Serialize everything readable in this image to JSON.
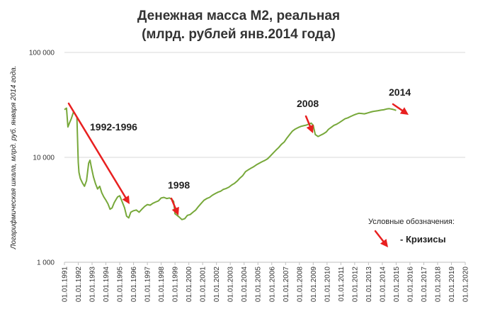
{
  "chart_data": {
    "type": "line",
    "title_line1": "Денежная масса М2, реальная",
    "title_line2": "(млрд. рублей янв.2014 года)",
    "ylabel": "Логарифмическая шкала, млрд. руб. января 2014 года.",
    "yscale": "log",
    "ylim": [
      1000,
      100000
    ],
    "yticks": [
      1000,
      10000,
      100000
    ],
    "ytick_labels": [
      "1 000",
      "10 000",
      "100 000"
    ],
    "xlim": [
      1991,
      2020
    ],
    "x_tick_labels": [
      "01.01.1991",
      "01.01.1992",
      "01.01.1993",
      "01.01.1994",
      "01.01.1995",
      "01.01.1996",
      "01.01.1997",
      "01.01.1998",
      "01.01.1999",
      "01.01.2000",
      "01.01.2001",
      "01.01.2002",
      "01.01.2003",
      "01.01.2004",
      "01.01.2005",
      "01.01.2006",
      "01.01.2007",
      "01.01.2008",
      "01.01.2009",
      "01.01.2010",
      "01.01.2011",
      "01.01.2012",
      "01.01.2013",
      "01.01.2014",
      "01.01.2015",
      "01.01.2016",
      "01.01.2017",
      "01.01.2018",
      "01.01.2019",
      "01.01.2020"
    ],
    "series": [
      {
        "color": "#77a83a",
        "x": [
          1991.0,
          1991.15,
          1991.25,
          1991.35,
          1991.5,
          1991.65,
          1991.8,
          1991.9,
          1992.0,
          1992.05,
          1992.15,
          1992.3,
          1992.45,
          1992.6,
          1992.75,
          1992.85,
          1992.95,
          1993.1,
          1993.25,
          1993.4,
          1993.55,
          1993.7,
          1993.85,
          1994.0,
          1994.15,
          1994.3,
          1994.45,
          1994.6,
          1994.75,
          1994.85,
          1995.0,
          1995.2,
          1995.35,
          1995.5,
          1995.65,
          1995.8,
          1996.0,
          1996.2,
          1996.4,
          1996.6,
          1996.8,
          1997.0,
          1997.2,
          1997.4,
          1997.6,
          1997.8,
          1998.0,
          1998.2,
          1998.4,
          1998.6,
          1998.8,
          1998.9,
          1999.0,
          1999.15,
          1999.3,
          1999.5,
          1999.7,
          1999.9,
          2000.1,
          2000.3,
          2000.5,
          2000.7,
          2000.9,
          2001.1,
          2001.3,
          2001.5,
          2001.7,
          2001.9,
          2002.1,
          2002.3,
          2002.5,
          2002.7,
          2002.9,
          2003.1,
          2003.3,
          2003.5,
          2003.7,
          2003.9,
          2004.1,
          2004.3,
          2004.5,
          2004.7,
          2004.9,
          2005.1,
          2005.3,
          2005.5,
          2005.7,
          2005.9,
          2006.1,
          2006.3,
          2006.5,
          2006.7,
          2006.9,
          2007.1,
          2007.3,
          2007.5,
          2007.7,
          2007.9,
          2008.1,
          2008.3,
          2008.5,
          2008.7,
          2008.85,
          2009.0,
          2009.15,
          2009.35,
          2009.55,
          2009.75,
          2009.95,
          2010.1,
          2010.3,
          2010.5,
          2010.7,
          2010.9,
          2011.1,
          2011.3,
          2011.5,
          2011.7,
          2011.9,
          2012.1,
          2012.3,
          2012.5,
          2012.7,
          2012.9,
          2013.1,
          2013.3,
          2013.5,
          2013.7,
          2013.9,
          2014.1,
          2014.3,
          2014.5,
          2014.7,
          2014.9,
          2015.0
        ],
        "y": [
          28500,
          29500,
          19500,
          21000,
          23500,
          27000,
          25500,
          24000,
          9000,
          7200,
          6300,
          5700,
          5300,
          6000,
          8800,
          9400,
          8000,
          6500,
          5600,
          5000,
          5300,
          4600,
          4200,
          3900,
          3600,
          3200,
          3300,
          3700,
          4000,
          4200,
          4300,
          3700,
          3300,
          2750,
          2650,
          3000,
          3100,
          3150,
          3000,
          3200,
          3400,
          3550,
          3500,
          3650,
          3750,
          3850,
          4100,
          4150,
          4050,
          4100,
          3950,
          3800,
          2900,
          2800,
          2700,
          2550,
          2600,
          2800,
          2850,
          3000,
          3150,
          3400,
          3650,
          3900,
          4050,
          4150,
          4350,
          4500,
          4650,
          4750,
          4950,
          5050,
          5200,
          5450,
          5650,
          5950,
          6350,
          6700,
          7300,
          7600,
          7900,
          8150,
          8500,
          8800,
          9100,
          9350,
          9700,
          10300,
          11000,
          11700,
          12400,
          13300,
          14000,
          15300,
          16500,
          17800,
          18600,
          19200,
          19700,
          20000,
          20300,
          20800,
          21200,
          20200,
          16500,
          15800,
          16300,
          16800,
          17500,
          18500,
          19300,
          20200,
          20700,
          21500,
          22400,
          23300,
          23800,
          24500,
          25200,
          25800,
          26300,
          26200,
          26000,
          26400,
          26900,
          27300,
          27600,
          27900,
          28200,
          28400,
          28900,
          29100,
          28800,
          28300,
          28000
        ]
      }
    ],
    "annotations": [
      {
        "label": "1992-1996"
      },
      {
        "label": "1998"
      },
      {
        "label": "2008"
      },
      {
        "label": "2014"
      }
    ],
    "legend": {
      "title": "Условные обозначения:",
      "item_label": "- Кризисы",
      "arrow_color": "#e82020"
    },
    "arrow_color": "#e82020"
  }
}
